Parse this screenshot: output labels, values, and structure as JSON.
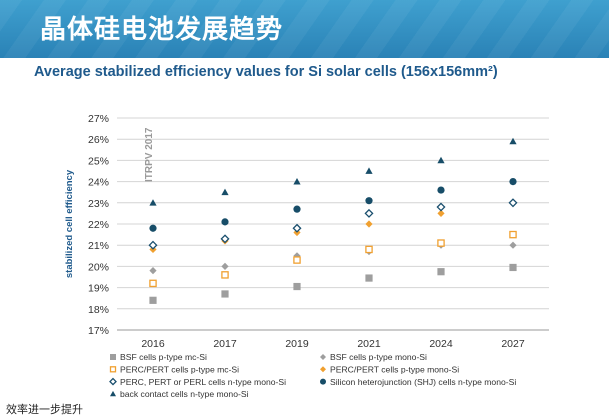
{
  "header": {
    "title": "晶体硅电池发展趋势",
    "subtitle": "Average stabilized efficiency values for Si solar cells (156x156mm²)"
  },
  "footer_text": "效率进一步提升",
  "chart_data": {
    "type": "scatter",
    "title": "Average stabilized efficiency values for Si solar cells (156x156mm²)",
    "ylabel": "stabilized cell efficiency",
    "xlabel": "",
    "annotation": "ITRPV 2017",
    "categories": [
      "2016",
      "2017",
      "2019",
      "2021",
      "2024",
      "2027"
    ],
    "yticks": [
      "17%",
      "18%",
      "19%",
      "20%",
      "21%",
      "22%",
      "23%",
      "24%",
      "25%",
      "26%",
      "27%"
    ],
    "ylim": [
      17,
      27
    ],
    "grid": true,
    "legend_position": "bottom",
    "series": [
      {
        "name": "BSF cells p-type mc-Si",
        "marker": "square",
        "color": "#9e9e9e",
        "values": [
          18.4,
          18.7,
          19.05,
          19.45,
          19.75,
          19.95
        ]
      },
      {
        "name": "BSF cells p-type mono-Si",
        "marker": "diamond",
        "color": "#9e9e9e",
        "values": [
          19.8,
          20.0,
          20.5,
          20.7,
          21.0,
          21.0
        ]
      },
      {
        "name": "PERC/PERT cells p-type mc-Si",
        "marker": "square-open",
        "color": "#f0a030",
        "values": [
          19.2,
          19.6,
          20.3,
          20.8,
          21.1,
          21.5
        ]
      },
      {
        "name": "PERC/PERT cells p-type mono-Si",
        "marker": "diamond",
        "color": "#f0a030",
        "values": [
          20.8,
          21.2,
          21.6,
          22.0,
          22.5,
          23.0
        ]
      },
      {
        "name": "PERC, PERT or PERL cells n-type mono-Si",
        "marker": "diamond-open",
        "color": "#1a4f6e",
        "values": [
          21.0,
          21.3,
          21.8,
          22.5,
          22.8,
          23.0
        ]
      },
      {
        "name": "Silicon heterojunction (SHJ) cells n-type mono-Si",
        "marker": "circle",
        "color": "#174d68",
        "values": [
          21.8,
          22.1,
          22.7,
          23.1,
          23.6,
          24.0
        ]
      },
      {
        "name": "back contact cells n-type mono-Si",
        "marker": "triangle",
        "color": "#174d68",
        "values": [
          23.0,
          23.5,
          24.0,
          24.5,
          25.0,
          25.9
        ]
      }
    ]
  }
}
